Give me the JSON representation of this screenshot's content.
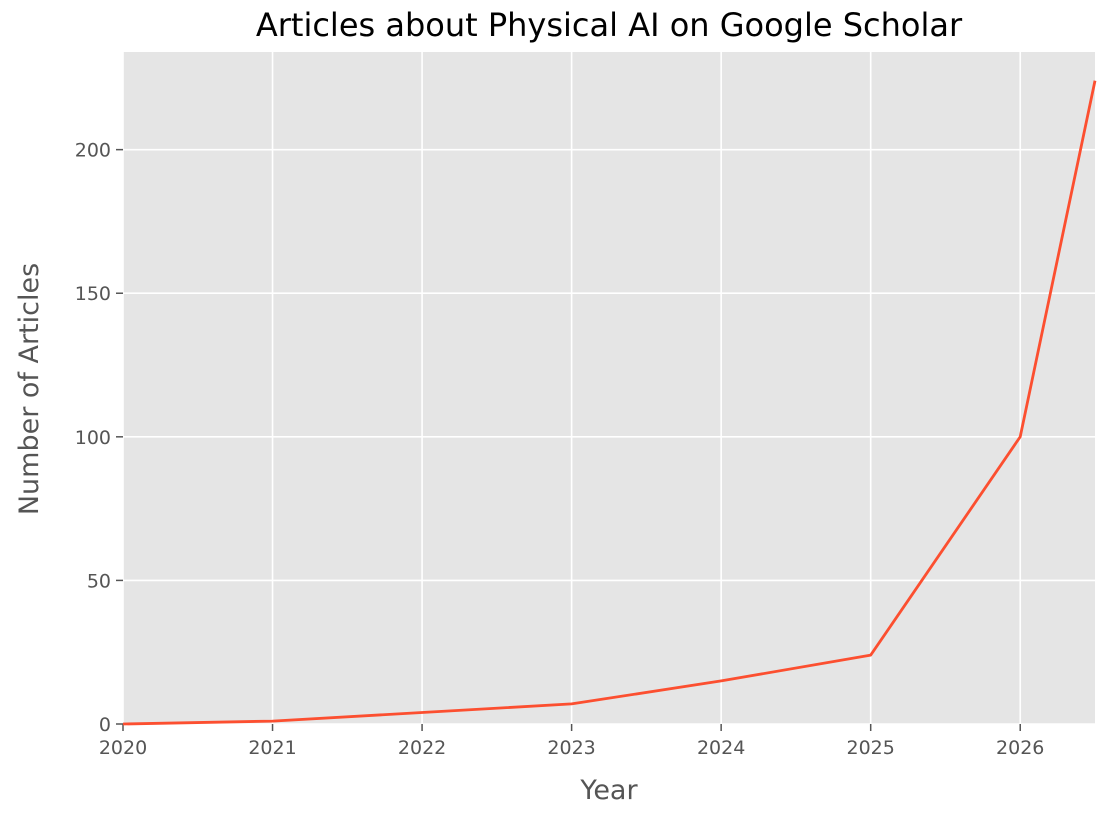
{
  "chart_data": {
    "type": "line",
    "title": "Articles about Physical AI on Google Scholar",
    "xlabel": "Year",
    "ylabel": "Number of Articles",
    "x": [
      2020,
      2021,
      2022,
      2023,
      2024,
      2025,
      2026,
      2026.5
    ],
    "series": [
      {
        "values": [
          0,
          1,
          4,
          7,
          15,
          24,
          100,
          224
        ]
      }
    ],
    "xlim": [
      2020,
      2026.5
    ],
    "ylim": [
      0,
      234
    ],
    "x_ticks": [
      "2020",
      "2021",
      "2022",
      "2023",
      "2024",
      "2025",
      "2026"
    ],
    "y_ticks": [
      "0",
      "50",
      "100",
      "150",
      "200"
    ],
    "grid": true,
    "style": "ggplot",
    "colors": {
      "line": "#fc4f30",
      "plot_background": "#e5e5e5",
      "grid": "#ffffff",
      "tick_text": "#555555"
    }
  }
}
